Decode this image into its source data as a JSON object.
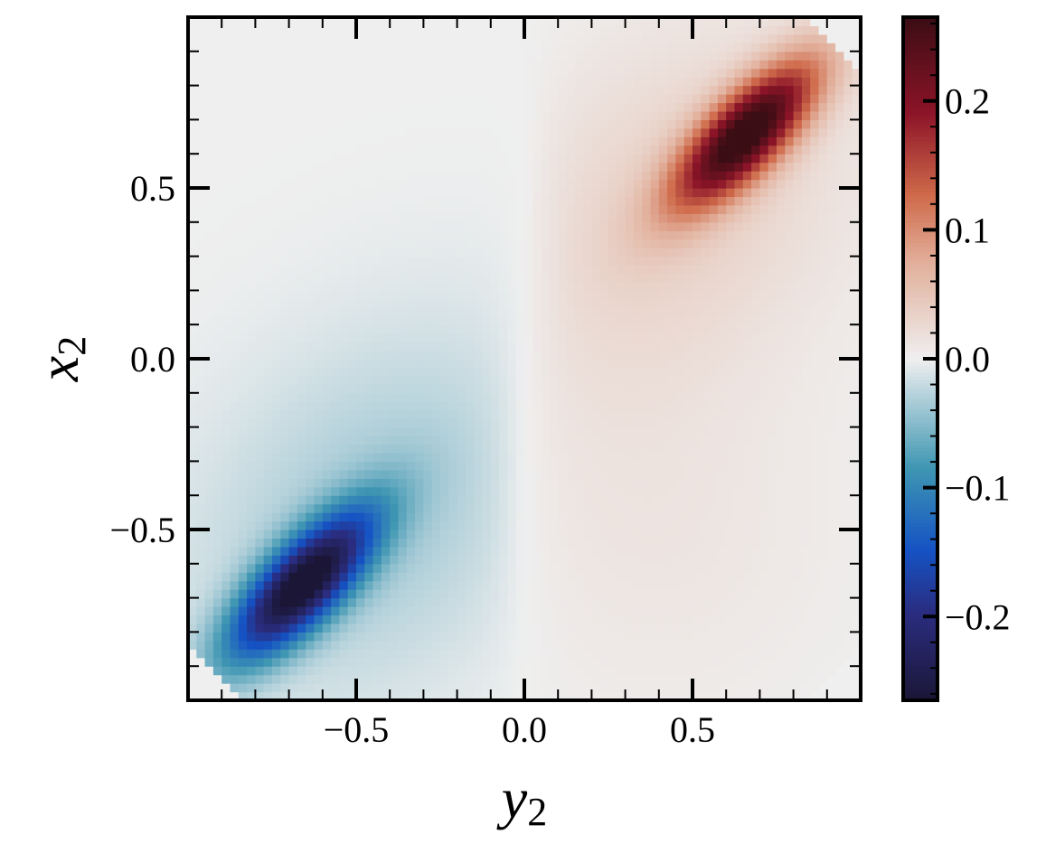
{
  "chart_data": {
    "type": "heatmap",
    "title": "",
    "xlabel": "y",
    "xlabel_subscript": "2",
    "ylabel": "x",
    "ylabel_subscript": "2",
    "xlim": [
      -1.0,
      1.0
    ],
    "ylim": [
      -1.0,
      1.0
    ],
    "x_ticks": [
      -0.5,
      0.0,
      0.5
    ],
    "x_tick_labels": [
      "−0.5",
      "0.0",
      "0.5"
    ],
    "y_ticks": [
      -0.5,
      0.0,
      0.5
    ],
    "y_tick_labels": [
      "−0.5",
      "0.0",
      "0.5"
    ],
    "grid": false,
    "colorbar": {
      "vmin": -0.265,
      "vmax": 0.265,
      "ticks": [
        -0.2,
        -0.1,
        0.0,
        0.1,
        0.2
      ],
      "tick_labels": [
        "−0.2",
        "−0.1",
        "0.0",
        "0.1",
        "0.2"
      ],
      "colormap": "diverging blue-white-red",
      "colors": {
        "min": "#1b1636",
        "low": "#1552c4",
        "mid_low": "#3e96b2",
        "center": "#efefef",
        "mid_high": "#cf6a4a",
        "high": "#8c1428",
        "max": "#3b0d14"
      }
    },
    "field": {
      "grid_size": 80,
      "description_of_values": "Two elongated lobes along the diagonal",
      "positive_peak": {
        "x": 0.65,
        "y": 0.65,
        "value": 0.265
      },
      "negative_peak": {
        "x": -0.67,
        "y": -0.67,
        "value": -0.265
      }
    }
  }
}
